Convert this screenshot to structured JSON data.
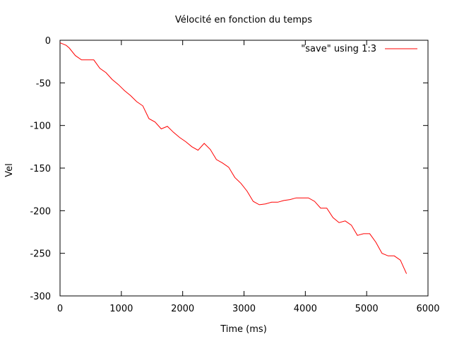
{
  "chart_data": {
    "type": "line",
    "title": "Vélocité en fonction du temps",
    "xlabel": "Time (ms)",
    "ylabel": "Vel",
    "xlim": [
      0,
      6000
    ],
    "ylim": [
      -300,
      0
    ],
    "xticks": [
      0,
      1000,
      2000,
      3000,
      4000,
      5000,
      6000
    ],
    "yticks": [
      0,
      -50,
      -100,
      -150,
      -200,
      -250,
      -300
    ],
    "xtick_labels": [
      "0",
      "1000",
      "2000",
      "3000",
      "4000",
      "5000",
      "6000"
    ],
    "ytick_labels": [
      "0",
      "-50",
      "-100",
      "-150",
      "-200",
      "-250",
      "-300"
    ],
    "grid": false,
    "legend_position": "top-right",
    "series": [
      {
        "name": "\"save\" using 1:3",
        "color": "#ff0000",
        "x": [
          0,
          100,
          150,
          250,
          350,
          450,
          550,
          650,
          750,
          850,
          950,
          1050,
          1150,
          1250,
          1350,
          1450,
          1550,
          1650,
          1750,
          1850,
          1950,
          2050,
          2150,
          2250,
          2350,
          2450,
          2550,
          2650,
          2750,
          2850,
          2950,
          3050,
          3150,
          3250,
          3350,
          3450,
          3550,
          3650,
          3750,
          3850,
          3950,
          4050,
          4150,
          4250,
          4350,
          4450,
          4550,
          4650,
          4750,
          4850,
          4950,
          5050,
          5150,
          5250,
          5350,
          5450,
          5550,
          5650
        ],
        "y": [
          -3,
          -6,
          -9,
          -18,
          -23,
          -23,
          -23,
          -33,
          -38,
          -46,
          -52,
          -59,
          -65,
          -72,
          -77,
          -92,
          -96,
          -104,
          -101,
          -108,
          -114,
          -119,
          -125,
          -129,
          -121,
          -128,
          -140,
          -144,
          -149,
          -161,
          -168,
          -177,
          -189,
          -193,
          -192,
          -190,
          -190,
          -188,
          -187,
          -185,
          -185,
          -185,
          -189,
          -197,
          -197,
          -208,
          -214,
          -212,
          -217,
          -229,
          -227,
          -227,
          -237,
          -250,
          -253,
          -253,
          -258,
          -274
        ]
      }
    ]
  }
}
